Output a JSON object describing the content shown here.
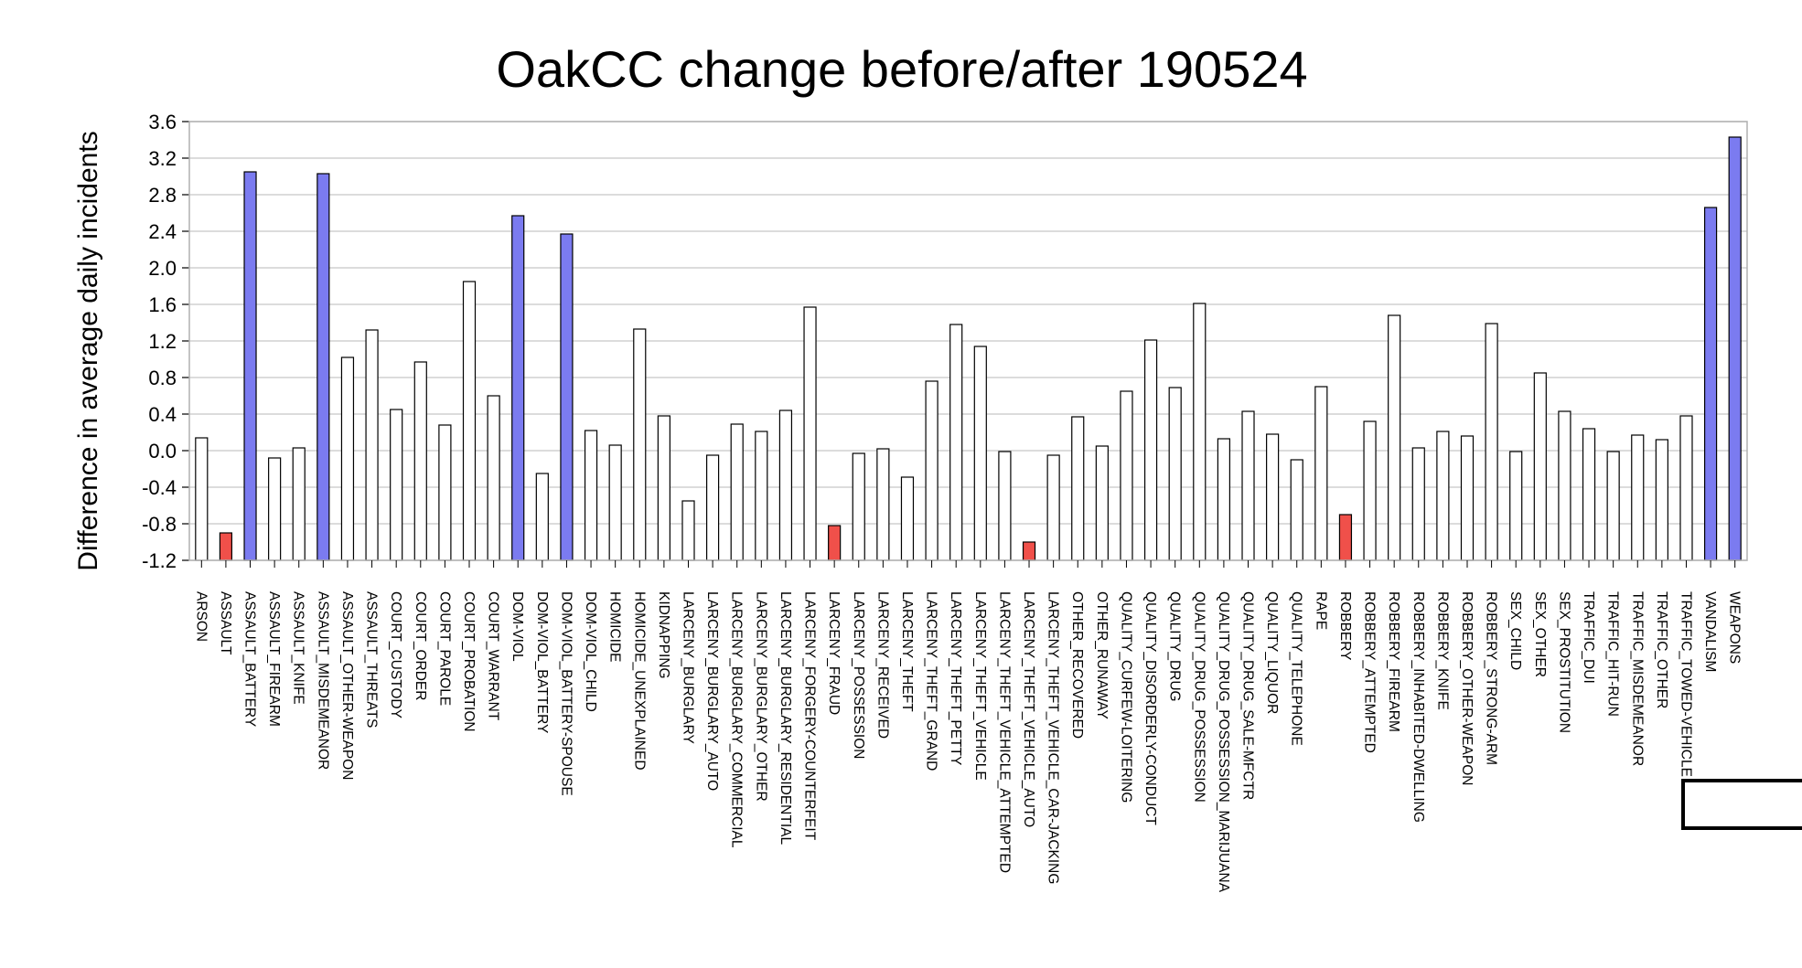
{
  "chart_data": {
    "type": "bar",
    "title": "OakCC change before/after 190524",
    "xlabel": "",
    "ylabel": "Difference in average daily incidents",
    "ylim": [
      -1.2,
      3.6
    ],
    "yticks": [
      "3.6",
      "3.2",
      "2.8",
      "2.4",
      "2.0",
      "1.6",
      "1.2",
      "0.8",
      "0.4",
      "0.0",
      "-0.4",
      "-0.8",
      "-1.2"
    ],
    "grid": true,
    "legend": "none",
    "colors": {
      "positive_highlight": "#7b7bf0",
      "negative_highlight": "#f0504a",
      "default": "#ffffff",
      "stroke": "#000000",
      "grid": "#c8c8c8"
    },
    "categories": [
      "ARSON",
      "ASSAULT",
      "ASSAULT_BATTERY",
      "ASSAULT_FIREARM",
      "ASSAULT_KNIFE",
      "ASSAULT_MISDEMEANOR",
      "ASSAULT_OTHER-WEAPON",
      "ASSAULT_THREATS",
      "COURT_CUSTODY",
      "COURT_ORDER",
      "COURT_PAROLE",
      "COURT_PROBATION",
      "COURT_WARRANT",
      "DOM-VIOL",
      "DOM-VIOL_BATTERY",
      "DOM-VIOL_BATTERY-SPOUSE",
      "DOM-VIOL_CHILD",
      "HOMICIDE",
      "HOMICIDE_UNEXPLAINED",
      "KIDNAPPING",
      "LARCENY_BURGLARY",
      "LARCENY_BURGLARY_AUTO",
      "LARCENY_BURGLARY_COMMERCIAL",
      "LARCENY_BURGLARY_OTHER",
      "LARCENY_BURGLARY_RESIDENTIAL",
      "LARCENY_FORGERY-COUNTERFEIT",
      "LARCENY_FRAUD",
      "LARCENY_POSSESSION",
      "LARCENY_RECEIVED",
      "LARCENY_THEFT",
      "LARCENY_THEFT_GRAND",
      "LARCENY_THEFT_PETTY",
      "LARCENY_THEFT_VEHICLE",
      "LARCENY_THEFT_VEHICLE_ATTEMPTED",
      "LARCENY_THEFT_VEHICLE_AUTO",
      "LARCENY_THEFT_VEHICLE_CAR-JACKING",
      "OTHER_RECOVERED",
      "OTHER_RUNAWAY",
      "QUALITY_CURFEW-LOITERING",
      "QUALITY_DISORDERLY-CONDUCT",
      "QUALITY_DRUG",
      "QUALITY_DRUG_POSSESSION",
      "QUALITY_DRUG_POSSESSION_MARIJUANA",
      "QUALITY_DRUG_SALE-MFCTR",
      "QUALITY_LIQUOR",
      "QUALITY_TELEPHONE",
      "RAPE",
      "ROBBERY",
      "ROBBERY_ATTEMPTED",
      "ROBBERY_FIREARM",
      "ROBBERY_INHABITED-DWELLING",
      "ROBBERY_KNIFE",
      "ROBBERY_OTHER-WEAPON",
      "ROBBERY_STRONG-ARM",
      "SEX_CHILD",
      "SEX_OTHER",
      "SEX_PROSTITUTION",
      "TRAFFIC_DUI",
      "TRAFFIC_HIT-RUN",
      "TRAFFIC_MISDEMEANOR",
      "TRAFFIC_OTHER",
      "TRAFFIC_TOWED-VEHICLE",
      "VANDALISM",
      "WEAPONS"
    ],
    "values": [
      0.14,
      -0.9,
      3.05,
      -0.08,
      0.03,
      3.03,
      1.02,
      1.32,
      0.45,
      0.97,
      0.28,
      1.85,
      0.6,
      2.57,
      -0.25,
      2.37,
      0.22,
      0.06,
      1.33,
      0.38,
      -0.55,
      -0.05,
      0.29,
      0.21,
      0.44,
      1.57,
      -0.82,
      -0.03,
      0.02,
      -0.29,
      0.76,
      1.38,
      1.14,
      -0.01,
      -1.0,
      -0.05,
      0.37,
      0.05,
      0.65,
      1.21,
      0.69,
      1.61,
      0.13,
      0.43,
      0.18,
      -0.1,
      0.7,
      -0.7,
      0.32,
      1.48,
      0.03,
      0.21,
      0.16,
      1.39,
      -0.01,
      0.85,
      0.43,
      0.24,
      -0.01,
      0.17,
      0.12,
      0.38,
      2.66,
      3.43
    ],
    "highlight": [
      "none",
      "negative",
      "positive",
      "none",
      "none",
      "positive",
      "none",
      "none",
      "none",
      "none",
      "none",
      "none",
      "none",
      "positive",
      "none",
      "positive",
      "none",
      "none",
      "none",
      "none",
      "none",
      "none",
      "none",
      "none",
      "none",
      "none",
      "negative",
      "none",
      "none",
      "none",
      "none",
      "none",
      "none",
      "none",
      "negative",
      "none",
      "none",
      "none",
      "none",
      "none",
      "none",
      "none",
      "none",
      "none",
      "none",
      "none",
      "none",
      "negative",
      "none",
      "none",
      "none",
      "none",
      "none",
      "none",
      "none",
      "none",
      "none",
      "none",
      "none",
      "none",
      "none",
      "none",
      "positive",
      "positive"
    ]
  }
}
